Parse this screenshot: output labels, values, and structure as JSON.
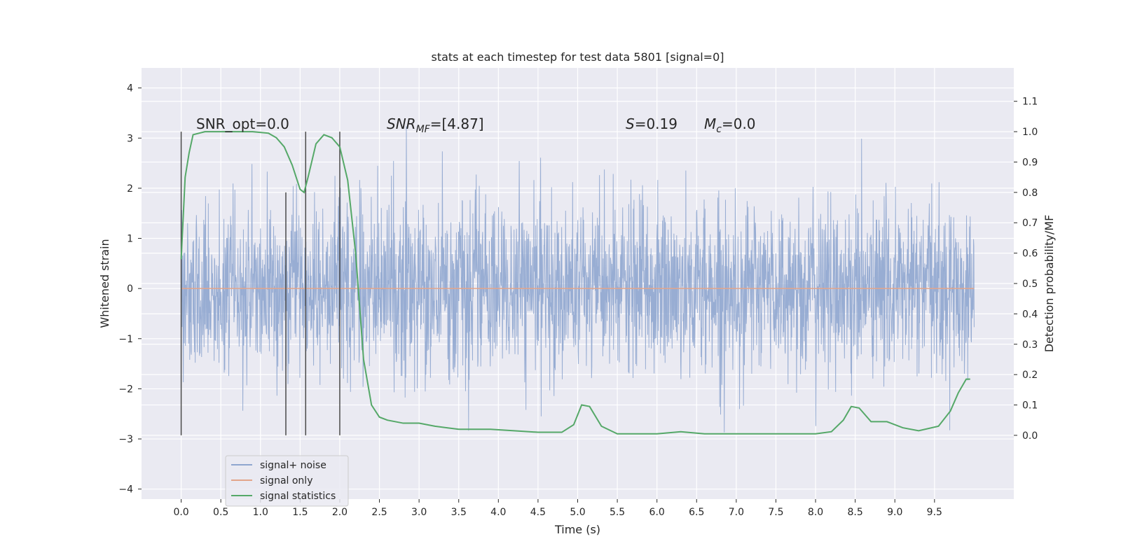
{
  "chart_data": {
    "type": "line",
    "title": "stats at each timestep for test data 5801 [signal=0]",
    "xlabel": "Time (s)",
    "ylabel_left": "Whitened strain",
    "ylabel_right": "Detection probability/MF",
    "xlim": [
      -0.5,
      10.5
    ],
    "ylim_left": [
      -4.2,
      4.4
    ],
    "ylim_right": [
      -0.21,
      1.21
    ],
    "x_ticks": [
      0.0,
      0.5,
      1.0,
      1.5,
      2.0,
      2.5,
      3.0,
      3.5,
      4.0,
      4.5,
      5.0,
      5.5,
      6.0,
      6.5,
      7.0,
      7.5,
      8.0,
      8.5,
      9.0,
      9.5
    ],
    "x_tick_labels": [
      "0.0",
      "0.5",
      "1.0",
      "1.5",
      "2.0",
      "2.5",
      "3.0",
      "3.5",
      "4.0",
      "4.5",
      "5.0",
      "5.5",
      "6.0",
      "6.5",
      "7.0",
      "7.5",
      "8.0",
      "8.5",
      "9.0",
      "9.5"
    ],
    "y_left_ticks": [
      4,
      3,
      2,
      1,
      0,
      -1,
      -2,
      -3,
      -4
    ],
    "y_left_tick_labels": [
      "4",
      "3",
      "2",
      "1",
      "0",
      "−1",
      "−2",
      "−3",
      "−4"
    ],
    "y_right_ticks": [
      1.1,
      1.0,
      0.9,
      0.8,
      0.7,
      0.6,
      0.5,
      0.4,
      0.3,
      0.2,
      0.1,
      0.0
    ],
    "y_right_tick_labels": [
      "1.1",
      "1.0",
      "0.9",
      "0.8",
      "0.7",
      "0.6",
      "0.5",
      "0.4",
      "0.3",
      "0.2",
      "0.1",
      "0.0"
    ],
    "grid": true,
    "legend_position": "lower-left",
    "noise_x_range": [
      0.0,
      10.0
    ],
    "noise_amplitude_typical": 1.1,
    "noise_amplitude_peak": 4.0,
    "series": [
      {
        "name": "signal+ noise",
        "axis": "left",
        "color": "#8fa6cf",
        "kind": "noise",
        "note_values": "dense whitened noise roughly spanning -3.6 to 4.0"
      },
      {
        "name": "signal only",
        "axis": "left",
        "color": "#e3a58a",
        "x": [
          0.0,
          10.0
        ],
        "y": [
          0.0,
          0.0
        ]
      },
      {
        "name": "signal statistics",
        "axis": "right",
        "color": "#55a868",
        "x": [
          0.0,
          0.05,
          0.1,
          0.15,
          0.3,
          0.5,
          0.7,
          0.9,
          1.1,
          1.2,
          1.3,
          1.4,
          1.45,
          1.5,
          1.55,
          1.6,
          1.7,
          1.8,
          1.9,
          2.0,
          2.1,
          2.2,
          2.3,
          2.4,
          2.5,
          2.6,
          2.8,
          3.0,
          3.2,
          3.5,
          3.9,
          4.2,
          4.5,
          4.8,
          4.95,
          5.05,
          5.15,
          5.3,
          5.5,
          5.8,
          6.0,
          6.3,
          6.6,
          7.0,
          7.5,
          8.0,
          8.2,
          8.35,
          8.45,
          8.55,
          8.7,
          8.9,
          9.1,
          9.3,
          9.55,
          9.7,
          9.8,
          9.9,
          9.95
        ],
        "y": [
          0.58,
          0.85,
          0.93,
          0.99,
          1.0,
          1.0,
          1.0,
          1.0,
          0.995,
          0.98,
          0.95,
          0.89,
          0.85,
          0.81,
          0.8,
          0.85,
          0.96,
          0.99,
          0.98,
          0.95,
          0.84,
          0.6,
          0.25,
          0.1,
          0.06,
          0.05,
          0.04,
          0.04,
          0.03,
          0.02,
          0.02,
          0.015,
          0.01,
          0.01,
          0.035,
          0.1,
          0.095,
          0.03,
          0.005,
          0.005,
          0.005,
          0.012,
          0.005,
          0.005,
          0.005,
          0.005,
          0.012,
          0.05,
          0.095,
          0.09,
          0.045,
          0.045,
          0.025,
          0.015,
          0.03,
          0.08,
          0.14,
          0.185,
          0.185
        ]
      }
    ],
    "vertical_lines": [
      {
        "x": 0.0,
        "y_bottom": 0.0,
        "y_top": 1.0
      },
      {
        "x": 1.32,
        "y_bottom": 0.0,
        "y_top": 0.8
      },
      {
        "x": 1.57,
        "y_bottom": 0.0,
        "y_top": 1.0
      },
      {
        "x": 2.0,
        "y_bottom": 0.0,
        "y_top": 1.0
      }
    ],
    "annotations": [
      {
        "prefix": "SNR_opt",
        "value": "=0.0"
      },
      {
        "prefix": "SNR",
        "subscript": "MF",
        "value": "=[4.87]"
      },
      {
        "prefix": "S",
        "value": "=0.19"
      },
      {
        "prefix": "M",
        "subscript": "c",
        "value": "=0.0"
      }
    ]
  },
  "legend": {
    "items": [
      {
        "label": "signal+ noise",
        "color": "#8fa6cf"
      },
      {
        "label": "signal only",
        "color": "#e3a58a"
      },
      {
        "label": "signal statistics",
        "color": "#55a868"
      }
    ]
  }
}
